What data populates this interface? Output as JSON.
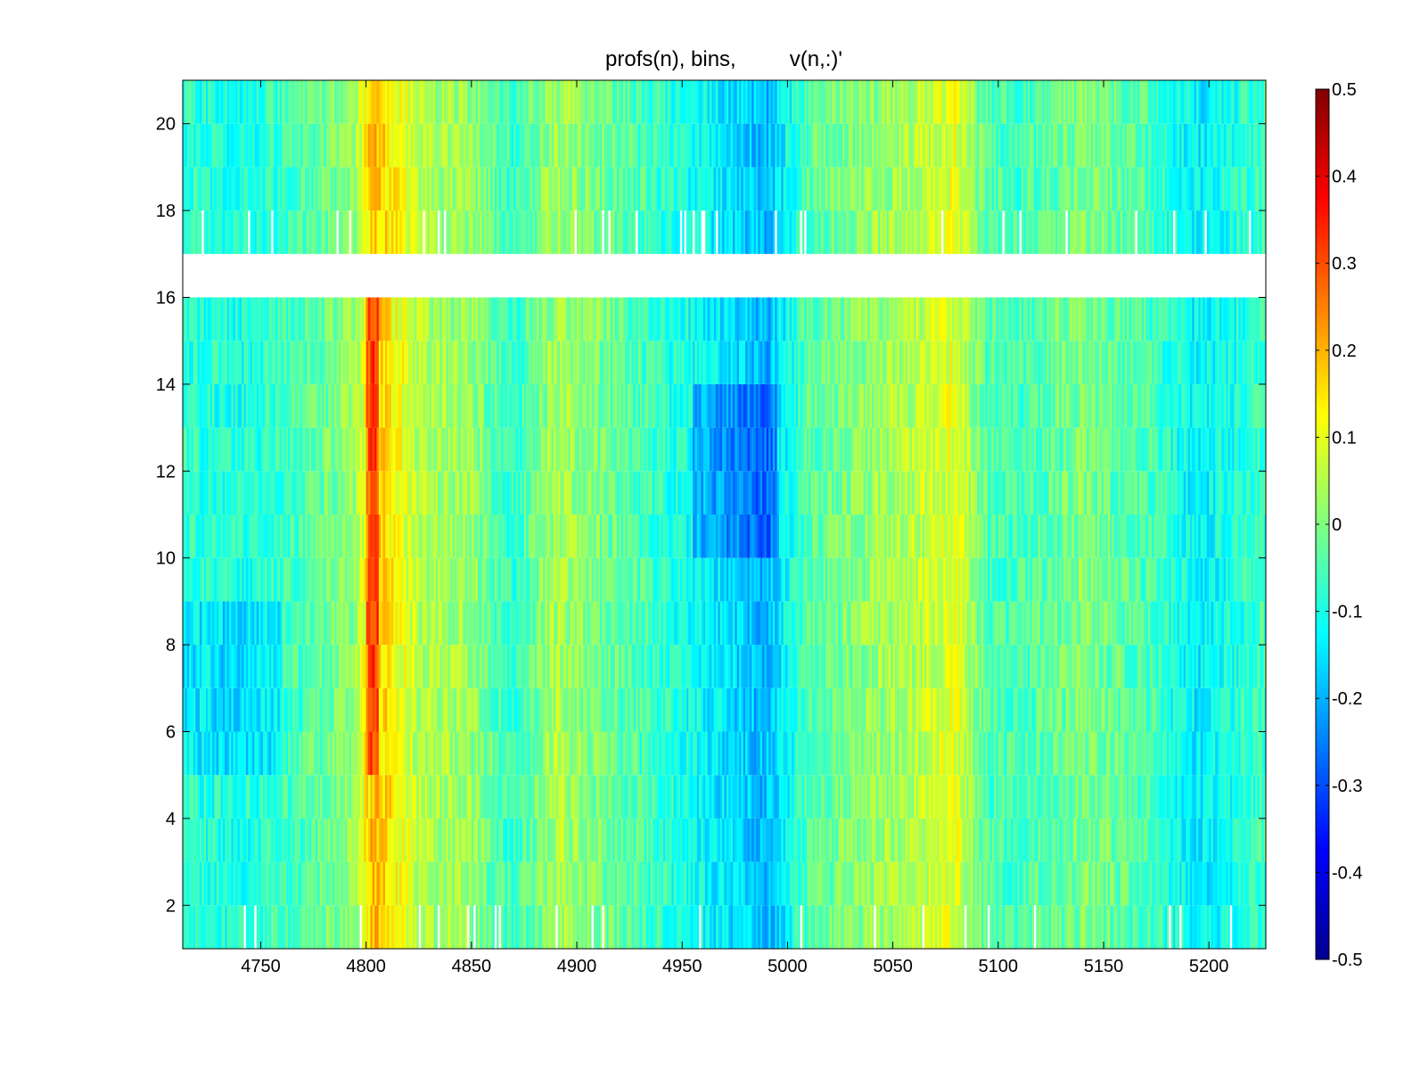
{
  "chart_data": {
    "type": "heatmap",
    "title": "profs(n), bins,         v(n,:)'",
    "xlabel": "",
    "ylabel": "",
    "xlim": [
      4713,
      5227
    ],
    "ylim": [
      1,
      21
    ],
    "x_ticks": [
      4750,
      4800,
      4850,
      4900,
      4950,
      5000,
      5050,
      5100,
      5150,
      5200
    ],
    "y_ticks": [
      2,
      4,
      6,
      8,
      10,
      12,
      14,
      16,
      18,
      20
    ],
    "x_tick_labels": [
      "4750",
      "4800",
      "4850",
      "4900",
      "4950",
      "5000",
      "5050",
      "5100",
      "5150",
      "5200"
    ],
    "y_tick_labels": [
      "2",
      "4",
      "6",
      "8",
      "10",
      "12",
      "14",
      "16",
      "18",
      "20"
    ],
    "colormap": "jet",
    "clim": [
      -0.5,
      0.5
    ],
    "colorbar_ticks": [
      0.5,
      0.4,
      0.3,
      0.2,
      0.1,
      0,
      -0.1,
      -0.2,
      -0.3,
      -0.4,
      -0.5
    ],
    "colorbar_tick_labels": [
      "0.5",
      "0.4",
      "0.3",
      "0.2",
      "0.1",
      "0",
      "-0.1",
      "-0.2",
      "-0.3",
      "-0.4",
      "-0.5"
    ],
    "missing_rows": [
      16
    ],
    "row_values": [
      1,
      2,
      3,
      4,
      5,
      6,
      7,
      8,
      9,
      10,
      11,
      12,
      13,
      14,
      15,
      16,
      17,
      18,
      19,
      20
    ],
    "x_profile_mean": [
      {
        "x": 4713,
        "v": -0.08
      },
      {
        "x": 4740,
        "v": -0.1
      },
      {
        "x": 4770,
        "v": -0.05
      },
      {
        "x": 4795,
        "v": 0.02
      },
      {
        "x": 4803,
        "v": 0.2
      },
      {
        "x": 4812,
        "v": 0.14
      },
      {
        "x": 4825,
        "v": 0.05
      },
      {
        "x": 4850,
        "v": 0.02
      },
      {
        "x": 4870,
        "v": -0.08
      },
      {
        "x": 4890,
        "v": 0.04
      },
      {
        "x": 4920,
        "v": -0.03
      },
      {
        "x": 4950,
        "v": -0.1
      },
      {
        "x": 4975,
        "v": -0.16
      },
      {
        "x": 4990,
        "v": -0.2
      },
      {
        "x": 5010,
        "v": -0.04
      },
      {
        "x": 5040,
        "v": 0.02
      },
      {
        "x": 5065,
        "v": 0.06
      },
      {
        "x": 5080,
        "v": 0.1
      },
      {
        "x": 5095,
        "v": -0.05
      },
      {
        "x": 5110,
        "v": -0.06
      },
      {
        "x": 5140,
        "v": 0.0
      },
      {
        "x": 5170,
        "v": -0.05
      },
      {
        "x": 5195,
        "v": -0.14
      },
      {
        "x": 5227,
        "v": -0.06
      }
    ]
  },
  "colors": {
    "background": "#ffffff",
    "axis": "#000000",
    "missing": "#ffffff"
  }
}
